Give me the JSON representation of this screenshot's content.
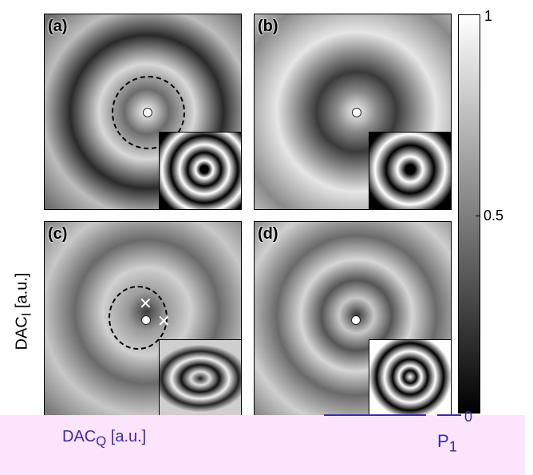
{
  "panels": [
    {
      "label": "(a)"
    },
    {
      "label": "(b)"
    },
    {
      "label": "(c)"
    },
    {
      "label": "(d)"
    }
  ],
  "colorbar": {
    "ticks": [
      "1",
      "0.5",
      "0"
    ],
    "label_main": "P",
    "label_sub": "1"
  },
  "axes": {
    "ylabel_main": "DAC",
    "ylabel_sub": "I",
    "ylabel_unit": " [a.u.]",
    "xlabel_main": "DAC",
    "xlabel_sub": "Q",
    "xlabel_unit": " [a.u.]"
  },
  "colors": {
    "accent": "#3a2bb0",
    "band": "#fce4fc"
  }
}
